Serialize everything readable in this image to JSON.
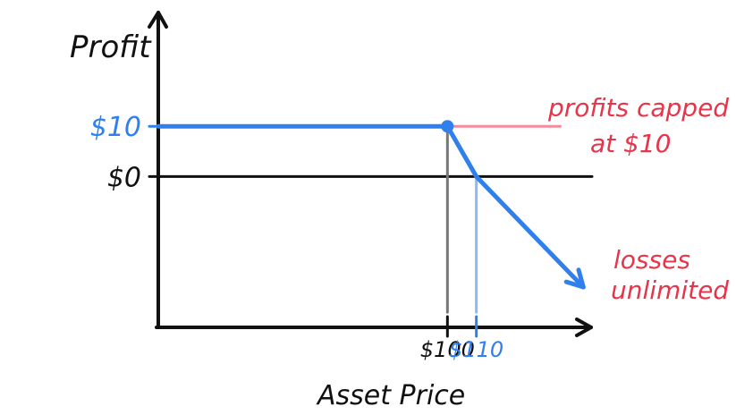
{
  "chart_data": {
    "type": "line",
    "title": "",
    "xlabel": "Asset Price",
    "ylabel": "Profit",
    "xlim": [
      0,
      150
    ],
    "ylim": [
      -30,
      33
    ],
    "x_ticks": [
      {
        "value": 100,
        "label": "$100",
        "color": "#111111"
      },
      {
        "value": 110,
        "label": "$110",
        "color": "#2f80ed"
      }
    ],
    "y_ticks": [
      {
        "value": 10,
        "label": "$10",
        "color": "#2f80ed"
      },
      {
        "value": 0,
        "label": "$0",
        "color": "#111111"
      }
    ],
    "reference_lines": [
      {
        "name": "zero-line",
        "orientation": "horizontal",
        "value": 0,
        "from": 0,
        "to": 150,
        "color": "#111111"
      },
      {
        "name": "profit-cap-line",
        "orientation": "horizontal",
        "value": 10,
        "from": 100,
        "to": 139,
        "color": "#f38b98"
      },
      {
        "name": "strike-dropline",
        "orientation": "vertical",
        "value": 100,
        "from": -27,
        "to": 10,
        "color": "#777777"
      },
      {
        "name": "breakeven-dropline",
        "orientation": "vertical",
        "value": 110,
        "from": -27,
        "to": 0,
        "color": "#8fb8ee"
      }
    ],
    "series": [
      {
        "name": "payoff",
        "color": "#2f80ed",
        "x": [
          0,
          100,
          110,
          147
        ],
        "y": [
          10,
          10,
          0,
          -22
        ]
      }
    ],
    "markers": [
      {
        "x": 100,
        "y": 10,
        "color": "#2f80ed"
      }
    ],
    "annotations": [
      {
        "lines": [
          "profits capped",
          "at $10"
        ],
        "color": "#e8344a"
      },
      {
        "lines": [
          "losses",
          "unlimited"
        ],
        "color": "#e8344a"
      }
    ]
  }
}
